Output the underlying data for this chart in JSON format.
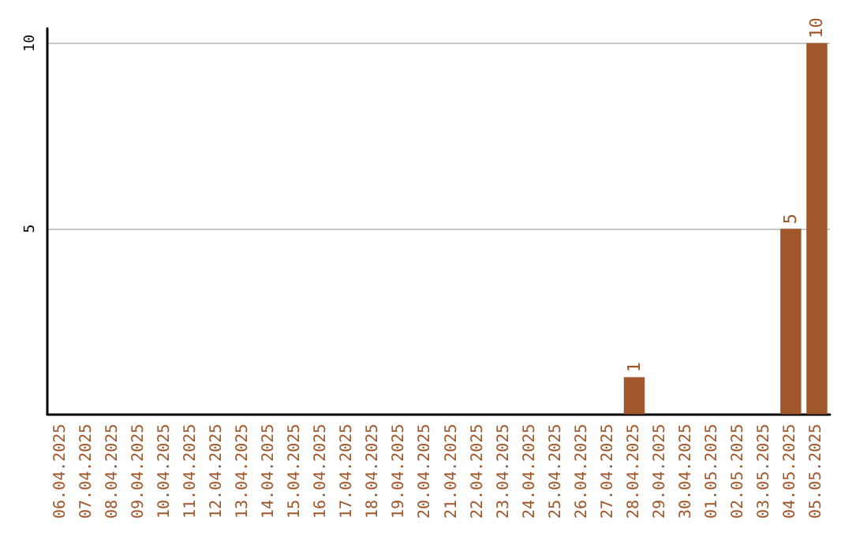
{
  "chart_data": {
    "type": "bar",
    "categories": [
      "06.04.2025",
      "07.04.2025",
      "08.04.2025",
      "09.04.2025",
      "10.04.2025",
      "11.04.2025",
      "12.04.2025",
      "13.04.2025",
      "14.04.2025",
      "15.04.2025",
      "16.04.2025",
      "17.04.2025",
      "18.04.2025",
      "19.04.2025",
      "20.04.2025",
      "21.04.2025",
      "22.04.2025",
      "23.04.2025",
      "24.04.2025",
      "25.04.2025",
      "26.04.2025",
      "27.04.2025",
      "28.04.2025",
      "29.04.2025",
      "30.04.2025",
      "01.05.2025",
      "02.05.2025",
      "03.05.2025",
      "04.05.2025",
      "05.05.2025"
    ],
    "values": [
      0,
      0,
      0,
      0,
      0,
      0,
      0,
      0,
      0,
      0,
      0,
      0,
      0,
      0,
      0,
      0,
      0,
      0,
      0,
      0,
      0,
      0,
      1,
      0,
      0,
      0,
      0,
      0,
      5,
      10
    ],
    "value_labels": [
      null,
      null,
      null,
      null,
      null,
      null,
      null,
      null,
      null,
      null,
      null,
      null,
      null,
      null,
      null,
      null,
      null,
      null,
      null,
      null,
      null,
      null,
      "1",
      null,
      null,
      null,
      null,
      null,
      "5",
      "10"
    ],
    "color": "#a0572b",
    "ylim": [
      0,
      10.4
    ],
    "yticks": [
      5,
      10
    ],
    "grid": "y"
  }
}
